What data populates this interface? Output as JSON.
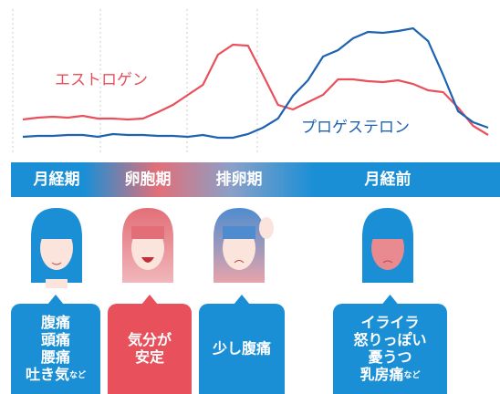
{
  "chart_data": {
    "type": "line",
    "ylim": [
      0,
      160
    ],
    "series": [
      {
        "name": "エストロゲン",
        "color": "#e8505b",
        "values": [
          39,
          41,
          42,
          41,
          43,
          40,
          40,
          39,
          40,
          47,
          55,
          66,
          77,
          110,
          121,
          120,
          88,
          55,
          50,
          58,
          66,
          83,
          83,
          81,
          80,
          82,
          78,
          71,
          69,
          52,
          32,
          22
        ]
      },
      {
        "name": "プロゲステロン",
        "color": "#1e62b0",
        "values": [
          20,
          21,
          21,
          22,
          22,
          20,
          23,
          22,
          22,
          21,
          21,
          20,
          22,
          19,
          19,
          23,
          30,
          40,
          65,
          82,
          108,
          115,
          128,
          135,
          134,
          136,
          139,
          125,
          88,
          48,
          36,
          30
        ]
      }
    ]
  },
  "phases": [
    "月経期",
    "卵胞期",
    "排卵期",
    "月経前"
  ],
  "symptoms": [
    {
      "lines": [
        "腹痛",
        "頭痛",
        "腰痛",
        "吐き気"
      ],
      "note": "など"
    },
    {
      "lines": [
        "気分が",
        "安定"
      ]
    },
    {
      "lines": [
        "少し腹痛"
      ]
    },
    {
      "lines": [
        "イライラ",
        "怒りっぽい",
        "憂うつ",
        "乳房痛"
      ],
      "note": "など"
    }
  ]
}
